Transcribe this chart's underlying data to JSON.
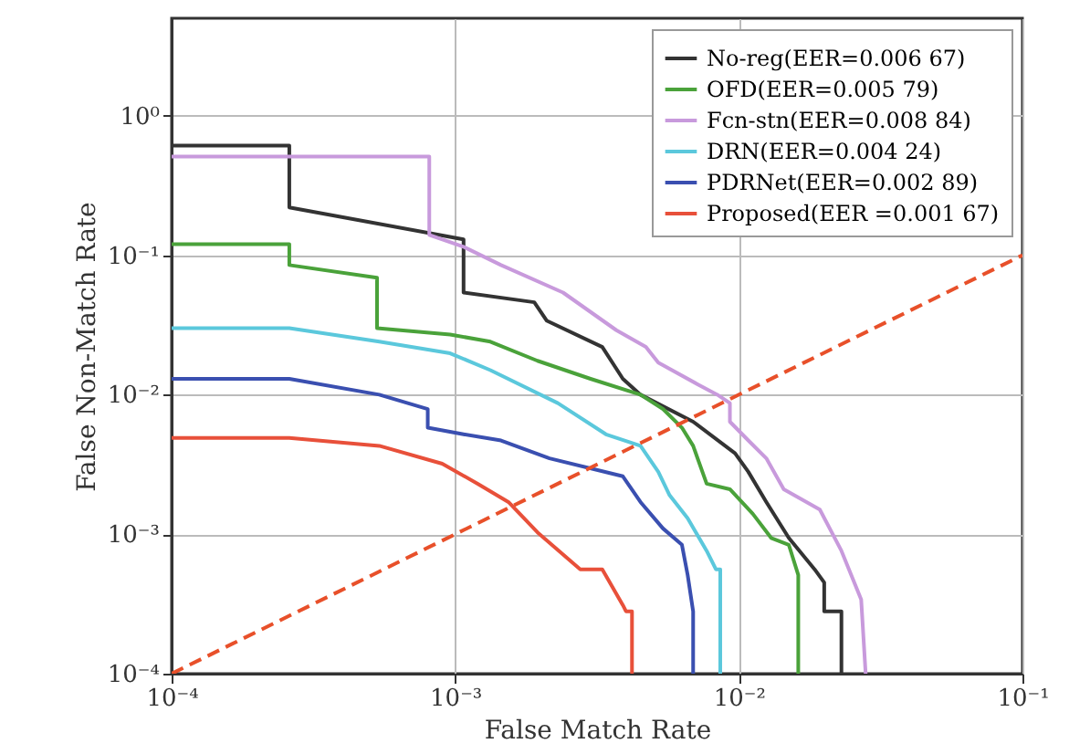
{
  "chart_data": {
    "type": "line",
    "xlabel": "False Match Rate",
    "ylabel": "False Non-Match Rate",
    "xlim": [
      0.0001,
      0.1
    ],
    "ylim": [
      0.0001,
      5
    ],
    "xticks": [
      {
        "value": 0.0001,
        "label": "10⁻⁴"
      },
      {
        "value": 0.001,
        "label": "10⁻³"
      },
      {
        "value": 0.01,
        "label": "10⁻²"
      },
      {
        "value": 0.1,
        "label": "10⁻¹"
      }
    ],
    "yticks": [
      {
        "value": 0.0001,
        "label": "10⁻⁴"
      },
      {
        "value": 0.001,
        "label": "10⁻³"
      },
      {
        "value": 0.01,
        "label": "10⁻²"
      },
      {
        "value": 0.1,
        "label": "10⁻¹"
      },
      {
        "value": 1,
        "label": "10⁰"
      }
    ],
    "log": "xy",
    "grid": true,
    "legend": "top right",
    "line_style": "solid",
    "series": [
      {
        "name": "No-reg(EER=0.006 67)",
        "color": "#333333",
        "x": [
          0.0001,
          0.00026,
          0.00026,
          0.00107,
          0.00107,
          0.0019,
          0.0021,
          0.0033,
          0.0039,
          0.0045,
          0.0069,
          0.0097,
          0.0108,
          0.0125,
          0.015,
          0.0185,
          0.02,
          0.02,
          0.023,
          0.023
        ],
        "values": [
          0.61,
          0.61,
          0.22,
          0.13,
          0.054,
          0.046,
          0.034,
          0.022,
          0.013,
          0.01,
          0.0064,
          0.0038,
          0.0028,
          0.0017,
          0.00094,
          0.00056,
          0.00045,
          0.00028,
          0.00028,
          0.0001
        ]
      },
      {
        "name": "OFD(EER=0.005 79)",
        "color": "#4aa23a",
        "x": [
          0.0001,
          0.00026,
          0.00026,
          0.00053,
          0.00053,
          0.00096,
          0.00133,
          0.00195,
          0.003,
          0.0045,
          0.0054,
          0.0063,
          0.0069,
          0.0077,
          0.0093,
          0.0112,
          0.013,
          0.015,
          0.0162,
          0.0162
        ],
        "values": [
          0.12,
          0.12,
          0.085,
          0.069,
          0.03,
          0.027,
          0.024,
          0.0175,
          0.013,
          0.01,
          0.0079,
          0.0058,
          0.0043,
          0.0023,
          0.0021,
          0.0014,
          0.00094,
          0.00084,
          0.00051,
          0.0001
        ]
      },
      {
        "name": "Fcn-stn(EER=0.008 84)",
        "color": "#c89adc",
        "x": [
          0.0001,
          0.00081,
          0.00081,
          0.00107,
          0.00145,
          0.0024,
          0.0037,
          0.0047,
          0.0052,
          0.0072,
          0.0084,
          0.0093,
          0.0093,
          0.0108,
          0.0125,
          0.0144,
          0.0193,
          0.023,
          0.027,
          0.028
        ],
        "values": [
          0.51,
          0.51,
          0.14,
          0.115,
          0.085,
          0.054,
          0.029,
          0.022,
          0.017,
          0.0118,
          0.01,
          0.0087,
          0.0064,
          0.0047,
          0.0035,
          0.0021,
          0.0015,
          0.00076,
          0.00034,
          0.0001
        ]
      },
      {
        "name": "DRN(EER=0.004 24)",
        "color": "#5bc8dc",
        "x": [
          0.0001,
          0.00026,
          0.00054,
          0.00096,
          0.00133,
          0.0023,
          0.0034,
          0.0045,
          0.0052,
          0.0057,
          0.0066,
          0.0077,
          0.0083,
          0.0086,
          0.0086
        ],
        "values": [
          0.03,
          0.03,
          0.024,
          0.0198,
          0.015,
          0.0087,
          0.0052,
          0.0043,
          0.0028,
          0.0019,
          0.0013,
          0.00076,
          0.00056,
          0.00056,
          0.0001
        ]
      },
      {
        "name": "PDRNet(EER=0.002 89)",
        "color": "#3a4fb0",
        "x": [
          0.0001,
          0.00026,
          0.00054,
          0.0008,
          0.0008,
          0.00107,
          0.00145,
          0.00215,
          0.0039,
          0.0045,
          0.0054,
          0.0063,
          0.0066,
          0.0069,
          0.0069
        ],
        "values": [
          0.013,
          0.013,
          0.01,
          0.0079,
          0.0058,
          0.0052,
          0.0047,
          0.0035,
          0.0026,
          0.0017,
          0.0011,
          0.00084,
          0.00051,
          0.00028,
          0.0001
        ]
      },
      {
        "name": "Proposed(EER =0.001 67)",
        "color": "#e8503a",
        "x": [
          0.0001,
          0.00026,
          0.00054,
          0.0009,
          0.0012,
          0.00154,
          0.00195,
          0.00276,
          0.0033,
          0.0039,
          0.004,
          0.0042,
          0.0042
        ],
        "values": [
          0.0049,
          0.0049,
          0.0043,
          0.0032,
          0.0023,
          0.0017,
          0.00103,
          0.00056,
          0.00056,
          0.00031,
          0.00028,
          0.00028,
          0.0001
        ]
      },
      {
        "color": "#e8502a",
        "line_style": "dashed",
        "x": [
          0.0001,
          0.1
        ],
        "values": [
          0.0001,
          0.1
        ]
      }
    ]
  }
}
